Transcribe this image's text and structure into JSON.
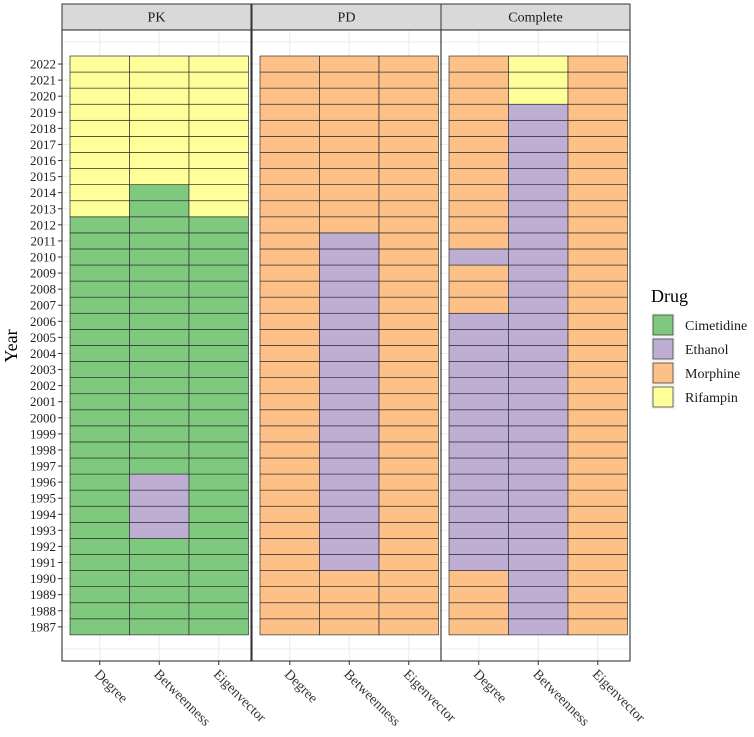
{
  "chart_data": {
    "type": "heatmap",
    "title": "",
    "ylabel": "Year",
    "xlabel": "",
    "years": [
      1987,
      1988,
      1989,
      1990,
      1991,
      1992,
      1993,
      1994,
      1995,
      1996,
      1997,
      1998,
      1999,
      2000,
      2001,
      2002,
      2003,
      2004,
      2005,
      2006,
      2007,
      2008,
      2009,
      2010,
      2011,
      2012,
      2013,
      2014,
      2015,
      2016,
      2017,
      2018,
      2019,
      2020,
      2021,
      2022
    ],
    "measures": [
      "Degree",
      "Betweenness",
      "Eigenvector"
    ],
    "legend": {
      "title": "Drug",
      "entries": [
        {
          "name": "Cimetidine",
          "color": "#7fc97f"
        },
        {
          "name": "Ethanol",
          "color": "#beaed4"
        },
        {
          "name": "Morphine",
          "color": "#fdc086"
        },
        {
          "name": "Rifampin",
          "color": "#ffff99"
        }
      ]
    },
    "panels": [
      {
        "name": "PK",
        "columns": {
          "Degree": [
            {
              "from": 1987,
              "to": 2012,
              "drug": "Cimetidine"
            },
            {
              "from": 2013,
              "to": 2022,
              "drug": "Rifampin"
            }
          ],
          "Betweenness": [
            {
              "from": 1987,
              "to": 1992,
              "drug": "Cimetidine"
            },
            {
              "from": 1993,
              "to": 1996,
              "drug": "Ethanol"
            },
            {
              "from": 1997,
              "to": 2014,
              "drug": "Cimetidine"
            },
            {
              "from": 2015,
              "to": 2022,
              "drug": "Rifampin"
            }
          ],
          "Eigenvector": [
            {
              "from": 1987,
              "to": 2012,
              "drug": "Cimetidine"
            },
            {
              "from": 2013,
              "to": 2022,
              "drug": "Rifampin"
            }
          ]
        }
      },
      {
        "name": "PD",
        "columns": {
          "Degree": [
            {
              "from": 1987,
              "to": 2022,
              "drug": "Morphine"
            }
          ],
          "Betweenness": [
            {
              "from": 1987,
              "to": 1990,
              "drug": "Morphine"
            },
            {
              "from": 1991,
              "to": 2011,
              "drug": "Ethanol"
            },
            {
              "from": 2012,
              "to": 2022,
              "drug": "Morphine"
            }
          ],
          "Eigenvector": [
            {
              "from": 1987,
              "to": 2022,
              "drug": "Morphine"
            }
          ]
        }
      },
      {
        "name": "Complete",
        "columns": {
          "Degree": [
            {
              "from": 1987,
              "to": 1990,
              "drug": "Morphine"
            },
            {
              "from": 1991,
              "to": 2006,
              "drug": "Ethanol"
            },
            {
              "from": 2007,
              "to": 2009,
              "drug": "Morphine"
            },
            {
              "from": 2010,
              "to": 2010,
              "drug": "Ethanol"
            },
            {
              "from": 2011,
              "to": 2022,
              "drug": "Morphine"
            }
          ],
          "Betweenness": [
            {
              "from": 1987,
              "to": 2019,
              "drug": "Ethanol"
            },
            {
              "from": 2020,
              "to": 2022,
              "drug": "Rifampin"
            }
          ],
          "Eigenvector": [
            {
              "from": 1987,
              "to": 2022,
              "drug": "Morphine"
            }
          ]
        }
      }
    ]
  }
}
